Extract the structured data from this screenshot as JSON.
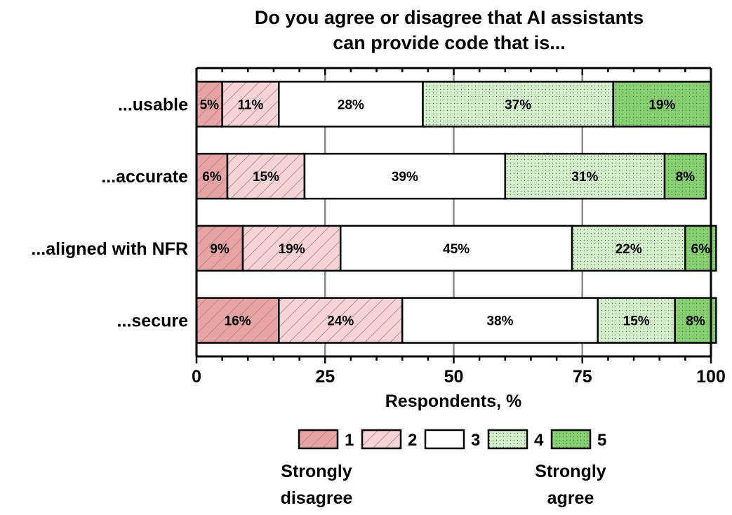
{
  "chart_data": {
    "type": "bar",
    "orientation": "horizontal",
    "stacked": true,
    "title_lines": [
      "Do you agree or disagree that AI assistants",
      "can provide code that is..."
    ],
    "xlabel": "Respondents, %",
    "ylabel": "",
    "xlim": [
      0,
      100
    ],
    "xticks": [
      0,
      25,
      50,
      75,
      100
    ],
    "grid": "vertical",
    "categories": [
      "...usable",
      "...accurate",
      "...aligned with NFR",
      "...secure"
    ],
    "series": [
      {
        "name": "1",
        "values": [
          5,
          6,
          9,
          16
        ],
        "labels": [
          "5%",
          "6%",
          "9%",
          "16%"
        ],
        "color": "#e8a4a4",
        "pattern": "hatch"
      },
      {
        "name": "2",
        "values": [
          11,
          15,
          19,
          24
        ],
        "labels": [
          "11%",
          "15%",
          "19%",
          "24%"
        ],
        "color": "#f4d4d4",
        "pattern": "hatch"
      },
      {
        "name": "3",
        "values": [
          28,
          39,
          45,
          38
        ],
        "labels": [
          "28%",
          "39%",
          "45%",
          "38%"
        ],
        "color": "#ffffff",
        "pattern": "none"
      },
      {
        "name": "4",
        "values": [
          37,
          31,
          22,
          15
        ],
        "labels": [
          "37%",
          "31%",
          "22%",
          "15%"
        ],
        "color": "#d4f0cc",
        "pattern": "dots"
      },
      {
        "name": "5",
        "values": [
          19,
          8,
          6,
          8
        ],
        "labels": [
          "19%",
          "8%",
          "6%",
          "8%"
        ],
        "color": "#86d071",
        "pattern": "dots"
      }
    ],
    "legend": {
      "placement": "bottom",
      "left_caption_lines": [
        "Strongly",
        "disagree"
      ],
      "right_caption_lines": [
        "Strongly",
        "agree"
      ]
    }
  }
}
